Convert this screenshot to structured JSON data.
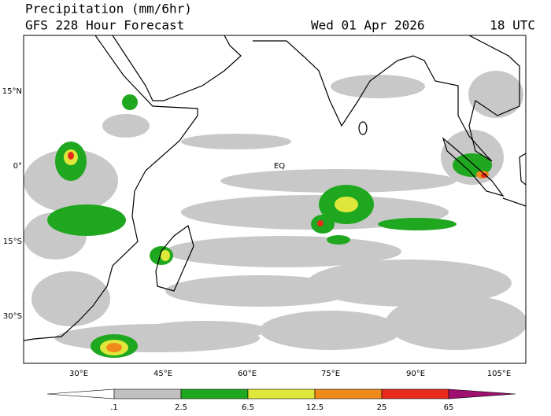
{
  "header": {
    "title": "Precipitation (mm/6hr)",
    "subtitle": "GFS 228 Hour Forecast",
    "date": "Wed 01 Apr 2026",
    "time": "18 UTC"
  },
  "map": {
    "equator_label": "EQ",
    "lat_labels": [
      "15°N",
      "0°",
      "15°S",
      "30°S"
    ],
    "lon_labels": [
      "30°E",
      "45°E",
      "60°E",
      "75°E",
      "90°E",
      "105°E"
    ]
  },
  "colorbar": {
    "labels": [
      ".1",
      "2.5",
      "6.5",
      "12.5",
      "25",
      "65"
    ]
  }
}
